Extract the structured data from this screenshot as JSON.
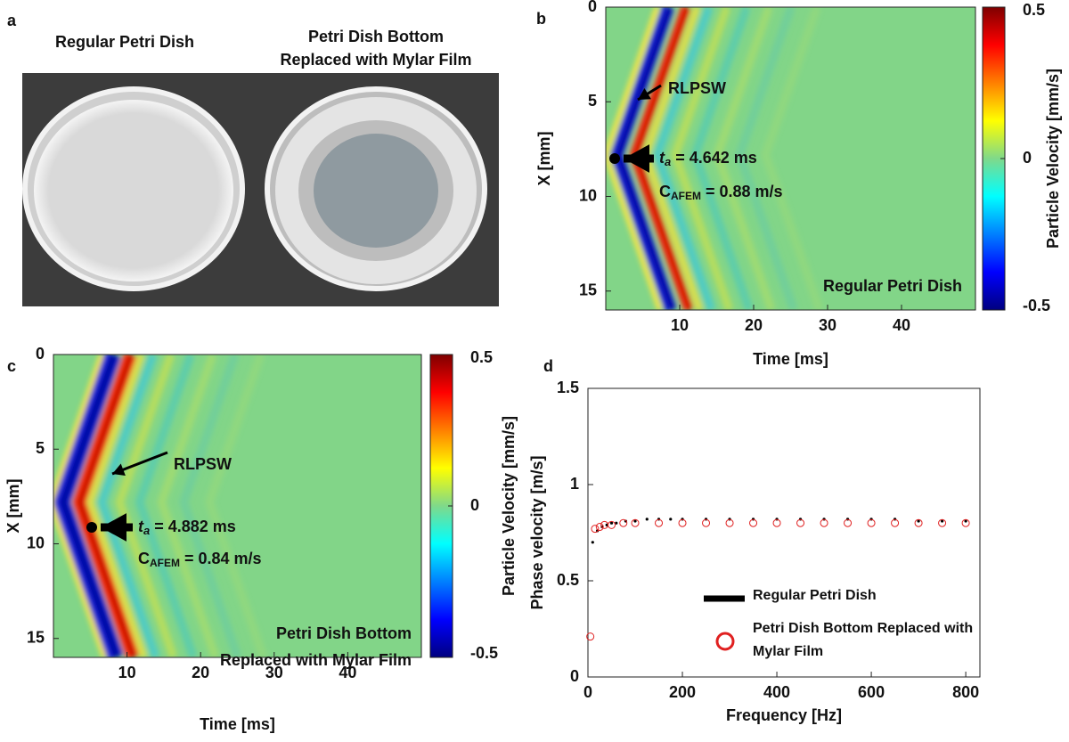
{
  "photo_panel": {
    "label": "a",
    "left_caption": "Regular Petri Dish",
    "right_caption": [
      "Petri Dish Bottom",
      "Replaced with Mylar Film"
    ]
  },
  "chart_data": [
    {
      "type": "heatmap",
      "label": "b",
      "xlabel": "Time [ms]",
      "ylabel": "X [mm]",
      "xlim": [
        0,
        50
      ],
      "xticks": [
        10,
        20,
        30,
        40
      ],
      "ylim": [
        0,
        16
      ],
      "yticks": [
        0,
        5,
        10,
        15
      ],
      "y_reversed": true,
      "clim": [
        -0.5,
        0.5
      ],
      "cticks": [
        -0.5,
        0,
        0.5
      ],
      "colorbar_label": "Particle Velocity [mm/s]",
      "colormap": "jet",
      "annotations": {
        "arrow_text": "RLPSW",
        "ta_symbol": "t",
        "ta_sub": "a",
        "ta_value": "= 4.642 ms",
        "c_symbol": "C",
        "c_sub": "AFEM",
        "c_value": "= 0.88 m/s",
        "note": [
          "Regular Petri Dish"
        ]
      }
    },
    {
      "type": "heatmap",
      "label": "c",
      "xlabel": "Time [ms]",
      "ylabel": "X [mm]",
      "xlim": [
        0,
        50
      ],
      "xticks": [
        10,
        20,
        30,
        40
      ],
      "ylim": [
        0,
        16
      ],
      "yticks": [
        0,
        5,
        10,
        15
      ],
      "y_reversed": true,
      "clim": [
        -0.5,
        0.5
      ],
      "cticks": [
        -0.5,
        0,
        0.5
      ],
      "colorbar_label": "Particle Velocity [mm/s]",
      "colormap": "jet",
      "annotations": {
        "arrow_text": "RLPSW",
        "ta_symbol": "t",
        "ta_sub": "a",
        "ta_value": "= 4.882 ms",
        "c_symbol": "C",
        "c_sub": "AFEM",
        "c_value": "= 0.84 m/s",
        "note": [
          "Petri Dish Bottom",
          "Replaced with Mylar Film"
        ]
      }
    },
    {
      "type": "scatter",
      "label": "d",
      "xlabel": "Frequency [Hz]",
      "ylabel": "Phase velocity [m/s]",
      "xlim": [
        0,
        830
      ],
      "xticks": [
        0,
        200,
        400,
        600,
        800
      ],
      "ylim": [
        0,
        1.5
      ],
      "yticks": [
        0,
        0.5,
        1,
        1.5
      ],
      "series": [
        {
          "name": "Regular Petri Dish",
          "color": "#000000",
          "marker": "dot",
          "x": [
            10,
            20,
            30,
            40,
            50,
            60,
            80,
            100,
            125,
            150,
            175,
            200,
            250,
            300,
            350,
            400,
            450,
            500,
            550,
            600,
            650,
            700,
            750,
            800
          ],
          "values": [
            0.7,
            0.76,
            0.78,
            0.79,
            0.8,
            0.8,
            0.81,
            0.81,
            0.82,
            0.82,
            0.82,
            0.82,
            0.82,
            0.82,
            0.82,
            0.82,
            0.82,
            0.82,
            0.82,
            0.82,
            0.82,
            0.81,
            0.81,
            0.81
          ]
        },
        {
          "name": "Petri Dish Bottom Replaced with Mylar Film",
          "color": "#e02020",
          "marker": "circle",
          "x": [
            5,
            15,
            25,
            35,
            50,
            75,
            100,
            150,
            200,
            250,
            300,
            350,
            400,
            450,
            500,
            550,
            600,
            650,
            700,
            750,
            800
          ],
          "values": [
            0.21,
            0.77,
            0.78,
            0.79,
            0.79,
            0.8,
            0.8,
            0.8,
            0.8,
            0.8,
            0.8,
            0.8,
            0.8,
            0.8,
            0.8,
            0.8,
            0.8,
            0.8,
            0.8,
            0.8,
            0.8
          ]
        }
      ]
    }
  ]
}
